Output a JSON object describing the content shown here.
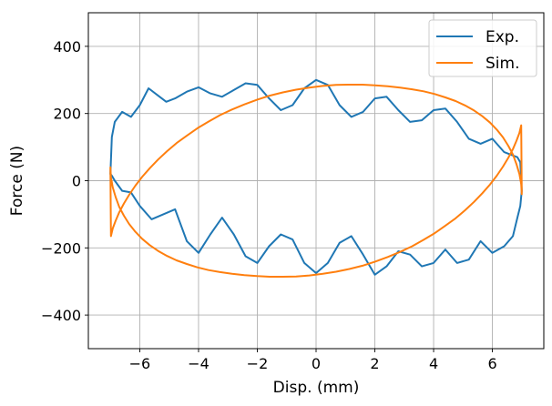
{
  "chart_data": {
    "type": "line",
    "title": "",
    "xlabel": "Disp. (mm)",
    "ylabel": "Force (N)",
    "xlim": [
      -7.75,
      7.75
    ],
    "ylim": [
      -500,
      500
    ],
    "xticks": [
      -6,
      -4,
      -2,
      0,
      2,
      4,
      6
    ],
    "yticks": [
      -400,
      -200,
      0,
      200,
      400
    ],
    "xtick_labels": [
      "−6",
      "−4",
      "−2",
      "0",
      "2",
      "4",
      "6"
    ],
    "ytick_labels": [
      "−400",
      "−200",
      "0",
      "200",
      "400"
    ],
    "grid": true,
    "legend_position": "top-right",
    "series": [
      {
        "name": "Exp.",
        "color": "#1f77b4",
        "x": [
          -7.0,
          -6.95,
          -6.85,
          -6.6,
          -6.3,
          -6.0,
          -5.7,
          -5.4,
          -5.1,
          -4.8,
          -4.4,
          -4.0,
          -3.6,
          -3.2,
          -2.8,
          -2.4,
          -2.0,
          -1.6,
          -1.2,
          -0.8,
          -0.4,
          0.0,
          0.4,
          0.8,
          1.2,
          1.6,
          2.0,
          2.4,
          2.8,
          3.2,
          3.6,
          4.0,
          4.4,
          4.8,
          5.2,
          5.6,
          6.0,
          6.4,
          6.7,
          6.85,
          6.95,
          7.0,
          6.95,
          6.85,
          6.7,
          6.4,
          6.0,
          5.6,
          5.2,
          4.8,
          4.4,
          4.0,
          3.6,
          3.2,
          2.8,
          2.4,
          2.0,
          1.6,
          1.2,
          0.8,
          0.4,
          0.0,
          -0.4,
          -0.8,
          -1.2,
          -1.6,
          -2.0,
          -2.4,
          -2.8,
          -3.2,
          -3.6,
          -4.0,
          -4.4,
          -4.8,
          -5.2,
          -5.6,
          -6.0,
          -6.3,
          -6.6,
          -6.85,
          -6.95,
          -7.0
        ],
        "y": [
          20,
          130,
          175,
          205,
          190,
          225,
          275,
          255,
          235,
          245,
          265,
          278,
          260,
          250,
          270,
          290,
          285,
          245,
          210,
          225,
          275,
          300,
          285,
          225,
          190,
          205,
          245,
          250,
          210,
          175,
          180,
          210,
          215,
          175,
          125,
          110,
          125,
          85,
          75,
          70,
          55,
          -30,
          -75,
          -110,
          -165,
          -195,
          -215,
          -180,
          -235,
          -245,
          -205,
          -245,
          -255,
          -220,
          -210,
          -255,
          -280,
          -220,
          -165,
          -185,
          -245,
          -275,
          -245,
          -175,
          -160,
          -195,
          -245,
          -225,
          -160,
          -110,
          -160,
          -215,
          -180,
          -85,
          -100,
          -115,
          -75,
          -35,
          -30,
          0,
          15,
          20
        ]
      },
      {
        "name": "Sim.",
        "color": "#ff7f0e",
        "x": [
          7.0,
          6.98,
          6.92,
          6.82,
          6.7,
          6.54,
          6.36,
          6.15,
          5.92,
          5.66,
          5.38,
          5.07,
          4.75,
          4.4,
          4.04,
          3.66,
          3.27,
          2.86,
          2.44,
          2.01,
          1.58,
          1.13,
          0.68,
          0.23,
          -0.23,
          -0.68,
          -1.13,
          -1.58,
          -2.01,
          -2.44,
          -2.86,
          -3.27,
          -3.66,
          -4.04,
          -4.4,
          -4.75,
          -5.07,
          -5.38,
          -5.66,
          -5.92,
          -6.15,
          -6.36,
          -6.54,
          -6.7,
          -6.82,
          -6.92,
          -6.98,
          -7.0,
          -6.98,
          -6.92,
          -6.82,
          -6.7,
          -6.54,
          -6.36,
          -6.15,
          -5.92,
          -5.66,
          -5.38,
          -5.07,
          -4.75,
          -4.4,
          -4.04,
          -3.66,
          -3.27,
          -2.86,
          -2.44,
          -2.01,
          -1.58,
          -1.13,
          -0.68,
          -0.23,
          0.23,
          0.68,
          1.13,
          1.58,
          2.01,
          2.44,
          2.86,
          3.27,
          3.66,
          4.04,
          4.4,
          4.75,
          5.07,
          5.38,
          5.66,
          5.92,
          6.15,
          6.36,
          6.54,
          6.7,
          6.82,
          6.92,
          6.98,
          7.0
        ],
        "y": [
          -40,
          -10,
          20,
          49,
          78,
          104,
          129,
          152,
          173,
          192,
          209,
          224,
          237,
          248,
          258,
          266,
          272,
          277,
          281,
          284,
          286,
          286,
          285,
          282,
          277,
          271,
          263,
          253,
          241,
          227,
          212,
          195,
          176,
          156,
          134,
          112,
          88,
          63,
          37,
          11,
          -15,
          -42,
          -68,
          -94,
          -119,
          -142,
          -165,
          40,
          10,
          -20,
          -49,
          -78,
          -104,
          -129,
          -152,
          -173,
          -192,
          -209,
          -224,
          -237,
          -248,
          -258,
          -266,
          -272,
          -277,
          -281,
          -284,
          -286,
          -286,
          -285,
          -282,
          -277,
          -271,
          -263,
          -253,
          -241,
          -227,
          -212,
          -195,
          -176,
          -156,
          -134,
          -112,
          -88,
          -63,
          -37,
          -11,
          15,
          42,
          68,
          94,
          119,
          142,
          165,
          -40
        ]
      }
    ]
  }
}
